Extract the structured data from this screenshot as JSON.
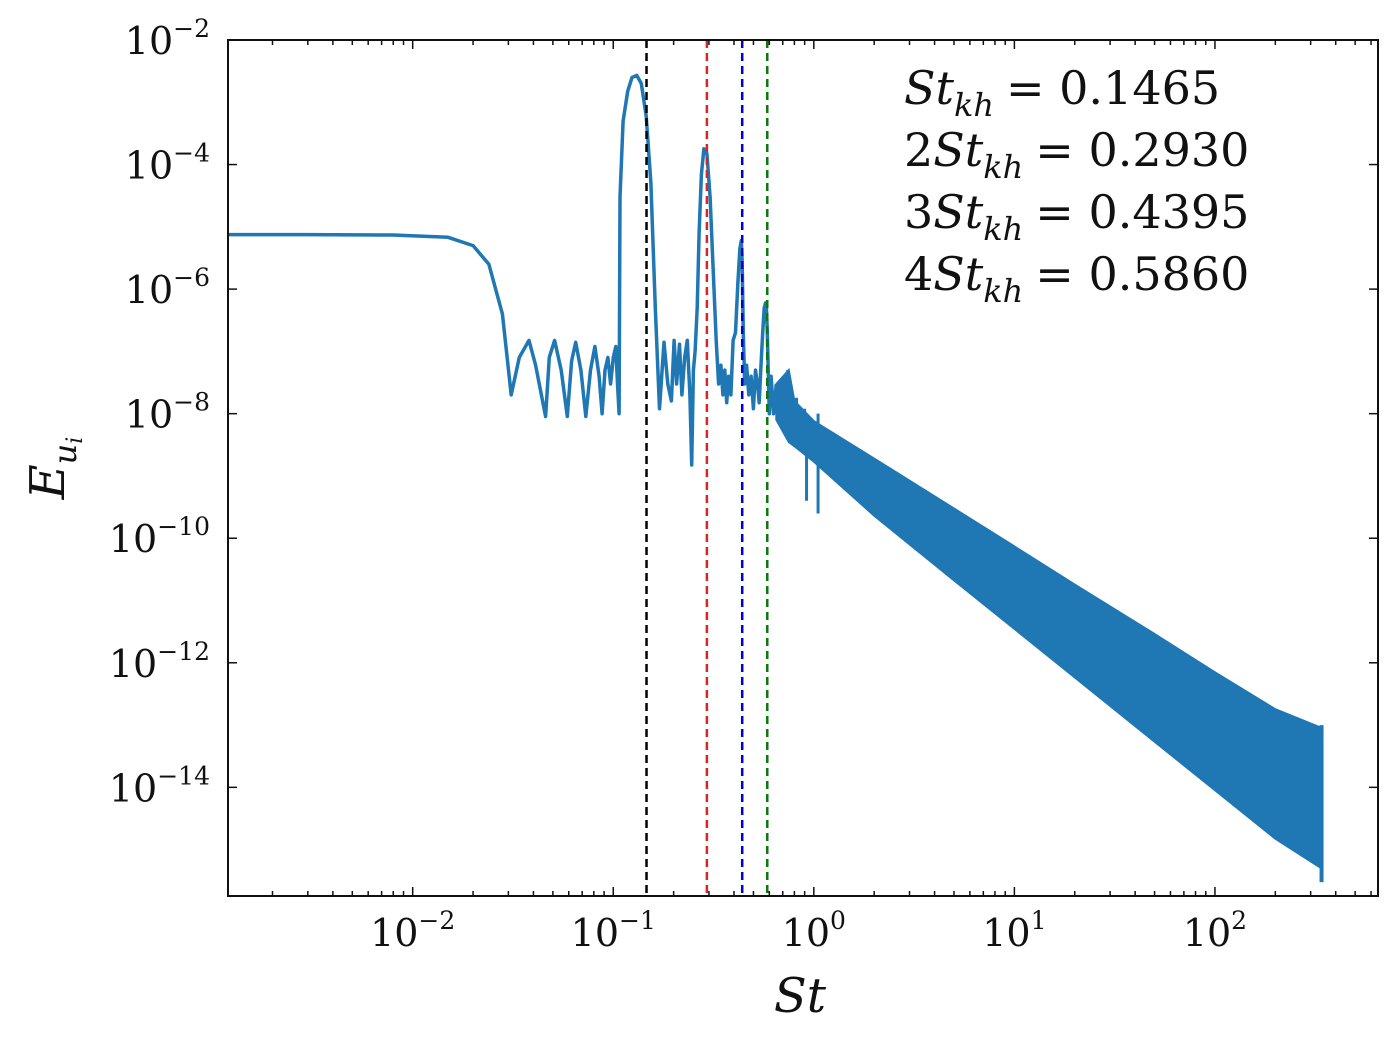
{
  "chart_data": {
    "type": "line",
    "xlabel": "St",
    "ylabel": "E_ui",
    "xscale": "log",
    "yscale": "log",
    "xlim": [
      0.0012,
      650
    ],
    "ylim": [
      1.8e-16,
      0.01
    ],
    "grid": false,
    "legend_placement": "top-right",
    "x_ticks": [
      {
        "base": "10",
        "exp": "−2",
        "value": 0.01
      },
      {
        "base": "10",
        "exp": "−1",
        "value": 0.1
      },
      {
        "base": "10",
        "exp": "0",
        "value": 1
      },
      {
        "base": "10",
        "exp": "1",
        "value": 10
      },
      {
        "base": "10",
        "exp": "2",
        "value": 100
      }
    ],
    "y_ticks": [
      {
        "base": "10",
        "exp": "−2",
        "value": 0.01
      },
      {
        "base": "10",
        "exp": "−4",
        "value": 0.0001
      },
      {
        "base": "10",
        "exp": "−6",
        "value": 1e-06
      },
      {
        "base": "10",
        "exp": "−8",
        "value": 1e-08
      },
      {
        "base": "10",
        "exp": "−10",
        "value": 1e-10
      },
      {
        "base": "10",
        "exp": "−12",
        "value": 1e-12
      },
      {
        "base": "10",
        "exp": "−14",
        "value": 1e-14
      }
    ],
    "series": [
      {
        "color": "#1f77b4",
        "x": [
          0.0012,
          0.003,
          0.008,
          0.015,
          0.02,
          0.024,
          0.028,
          0.031,
          0.034,
          0.038,
          0.041,
          0.046,
          0.048,
          0.051,
          0.055,
          0.059,
          0.062,
          0.065,
          0.069,
          0.073,
          0.077,
          0.081,
          0.085,
          0.088,
          0.091,
          0.094,
          0.097,
          0.1,
          0.103,
          0.105,
          0.107,
          0.108,
          0.112,
          0.118,
          0.124,
          0.131,
          0.138,
          0.146,
          0.154,
          0.162,
          0.17,
          0.179,
          0.187,
          0.195,
          0.201,
          0.207,
          0.214,
          0.22,
          0.227,
          0.234,
          0.241,
          0.246,
          0.251,
          0.256,
          0.262,
          0.268,
          0.275,
          0.283,
          0.293,
          0.304,
          0.315,
          0.326,
          0.335,
          0.344,
          0.352,
          0.36,
          0.368,
          0.376,
          0.386,
          0.396,
          0.407,
          0.418,
          0.428,
          0.435,
          0.439,
          0.445,
          0.452,
          0.462,
          0.474,
          0.487,
          0.5,
          0.512,
          0.524,
          0.534,
          0.545,
          0.556,
          0.566,
          0.574,
          0.58,
          0.586,
          0.592,
          0.6,
          0.612,
          0.63,
          0.65
        ],
        "y": [
          7.5e-06,
          7.5e-06,
          7.4e-06,
          6.8e-06,
          5e-06,
          2.5e-06,
          4e-07,
          2e-08,
          8e-08,
          1.5e-07,
          6e-08,
          9e-09,
          8e-08,
          1.5e-07,
          5e-08,
          9e-09,
          7e-08,
          1.4e-07,
          5e-08,
          9e-09,
          5e-08,
          1.2e-07,
          4e-08,
          1e-08,
          5e-08,
          8e-08,
          3e-08,
          8e-08,
          1.2e-07,
          3e-08,
          1e-08,
          3e-05,
          0.0005,
          0.0015,
          0.0025,
          0.0027,
          0.002,
          0.0006,
          5e-05,
          5e-07,
          1.2e-08,
          1.4e-07,
          3e-08,
          1.6e-08,
          1.5e-07,
          3e-08,
          1.3e-07,
          2e-08,
          8e-08,
          1.5e-07,
          2e-08,
          1.5e-09,
          5e-08,
          1e-07,
          5e-07,
          8e-06,
          7e-05,
          0.00018,
          0.00015,
          3e-05,
          2e-06,
          1.5e-07,
          3e-08,
          6e-08,
          2e-08,
          5e-08,
          1.5e-08,
          4e-08,
          2e-08,
          1.5e-07,
          2e-07,
          1.2e-06,
          4.5e-06,
          6e-06,
          3e-06,
          2e-07,
          3e-08,
          6e-08,
          2e-08,
          4e-08,
          1.2e-08,
          5e-08,
          3e-08,
          1.5e-08,
          6e-08,
          2e-07,
          5e-07,
          6e-07,
          5e-07,
          2e-07,
          5e-08,
          1e-08,
          4e-08,
          1e-08,
          3e-08
        ]
      }
    ],
    "band": {
      "note": "dense oscillation region continuing the same series",
      "x": [
        0.65,
        0.75,
        0.8,
        1,
        2,
        5,
        10,
        20,
        50,
        100,
        200,
        340
      ],
      "upper": [
        3e-08,
        5e-08,
        1.6e-08,
        7.6e-09,
        1.9e-09,
        3e-10,
        7.4e-11,
        1.8e-11,
        2.9e-12,
        7e-13,
        1.8e-13,
        9e-14
      ],
      "lower": [
        8e-09,
        3.5e-09,
        3e-09,
        1.7e-09,
        2.3e-10,
        2.1e-11,
        3.5e-12,
        5.8e-13,
        5.4e-14,
        9e-15,
        1.5e-15,
        5e-16
      ],
      "spikes": [
        [
          0.74,
          5e-08
        ],
        [
          0.82,
          1.8e-08
        ],
        [
          0.9,
          1.2e-08
        ],
        [
          0.92,
          4e-10
        ],
        [
          1.05,
          2.5e-10
        ]
      ],
      "tail": {
        "x": 340,
        "top": 1e-13,
        "bottom": 3e-16
      }
    },
    "reference_lines": [
      {
        "x": 0.1465,
        "color": "#000000"
      },
      {
        "x": 0.293,
        "color": "#d62728"
      },
      {
        "x": 0.4395,
        "color": "#0000d0"
      },
      {
        "x": 0.586,
        "color": "#087a08"
      }
    ],
    "legend": [
      {
        "prefix": "",
        "sub": "kh",
        "value": "= 0.1465",
        "color": "#000000"
      },
      {
        "prefix": "2",
        "sub": "kh",
        "value": "= 0.2930",
        "color": "#d62728"
      },
      {
        "prefix": "3",
        "sub": "kh",
        "value": "= 0.4395",
        "color": "#0000d0"
      },
      {
        "prefix": "4",
        "sub": "kh",
        "value": "= 0.5860",
        "color": "#087a08"
      }
    ]
  }
}
